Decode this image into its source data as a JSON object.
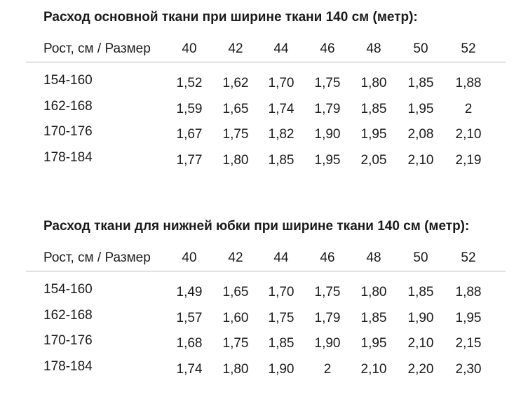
{
  "tables": [
    {
      "title": "Расход основной ткани при ширине ткани 140 см (метр):",
      "header": [
        "Рост, см / Размер",
        "40",
        "42",
        "44",
        "46",
        "48",
        "50",
        "52"
      ],
      "rows": [
        [
          "154-160",
          "1,52",
          "1,62",
          "1,70",
          "1,75",
          "1,80",
          "1,85",
          "1,88"
        ],
        [
          "162-168",
          "1,59",
          "1,65",
          "1,74",
          "1,79",
          "1,85",
          "1,95",
          "2"
        ],
        [
          "170-176",
          "1,67",
          "1,75",
          "1,82",
          "1,90",
          "1,95",
          "2,08",
          "2,10"
        ],
        [
          "178-184",
          "1,77",
          "1,80",
          "1,85",
          "1,95",
          "2,05",
          "2,10",
          "2,19"
        ]
      ]
    },
    {
      "title": "Расход ткани для нижней юбки при ширине ткани 140 см (метр):",
      "header": [
        "Рост, см / Размер",
        "40",
        "42",
        "44",
        "46",
        "48",
        "50",
        "52"
      ],
      "rows": [
        [
          "154-160",
          "1,49",
          "1,65",
          "1,70",
          "1,75",
          "1,80",
          "1,85",
          "1,88"
        ],
        [
          "162-168",
          "1,57",
          "1,60",
          "1,75",
          "1,79",
          "1,85",
          "1,90",
          "1,95"
        ],
        [
          "170-176",
          "1,68",
          "1,75",
          "1,85",
          "1,90",
          "1,95",
          "2,10",
          "2,15"
        ],
        [
          "178-184",
          "1,74",
          "1,80",
          "1,90",
          "2",
          "2,10",
          "2,20",
          "2,30"
        ]
      ]
    }
  ]
}
